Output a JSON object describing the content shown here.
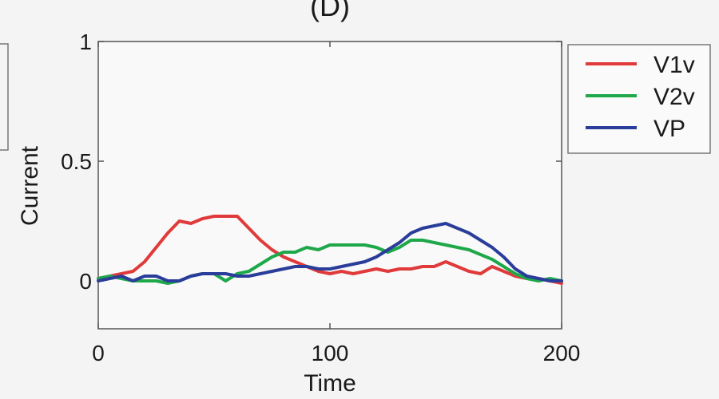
{
  "chart_data": {
    "type": "line",
    "panel_label": "(D)",
    "xlabel": "Time",
    "ylabel": "Current",
    "xlim": [
      0,
      200
    ],
    "ylim": [
      -0.2,
      1.0
    ],
    "x_ticks": [
      0,
      100,
      200
    ],
    "x_tick_labels": [
      "0",
      "100",
      "200"
    ],
    "y_ticks": [
      0,
      0.5,
      1
    ],
    "y_tick_labels": [
      "0",
      "0.5",
      "1"
    ],
    "grid": false,
    "legend_position": "top-right, outside plot",
    "series": [
      {
        "name": "V1v",
        "color": "#e03a3a",
        "x": [
          0,
          5,
          10,
          15,
          20,
          25,
          30,
          35,
          40,
          45,
          50,
          55,
          60,
          65,
          70,
          75,
          80,
          85,
          90,
          95,
          100,
          105,
          110,
          115,
          120,
          125,
          130,
          135,
          140,
          145,
          150,
          155,
          160,
          165,
          170,
          175,
          180,
          185,
          190,
          195,
          200
        ],
        "y": [
          0.01,
          0.02,
          0.03,
          0.04,
          0.08,
          0.14,
          0.2,
          0.25,
          0.24,
          0.26,
          0.27,
          0.27,
          0.27,
          0.22,
          0.17,
          0.13,
          0.1,
          0.08,
          0.06,
          0.04,
          0.03,
          0.04,
          0.03,
          0.04,
          0.05,
          0.04,
          0.05,
          0.05,
          0.06,
          0.06,
          0.08,
          0.06,
          0.04,
          0.03,
          0.06,
          0.04,
          0.02,
          0.01,
          0.01,
          0.0,
          -0.01
        ]
      },
      {
        "name": "V2v",
        "color": "#1fa84a",
        "x": [
          0,
          5,
          10,
          15,
          20,
          25,
          30,
          35,
          40,
          45,
          50,
          55,
          60,
          65,
          70,
          75,
          80,
          85,
          90,
          95,
          100,
          105,
          110,
          115,
          120,
          125,
          130,
          135,
          140,
          145,
          150,
          155,
          160,
          165,
          170,
          175,
          180,
          185,
          190,
          195,
          200
        ],
        "y": [
          0.01,
          0.02,
          0.01,
          0.0,
          0.0,
          0.0,
          -0.01,
          0.0,
          0.02,
          0.03,
          0.03,
          0.0,
          0.03,
          0.04,
          0.07,
          0.1,
          0.12,
          0.12,
          0.14,
          0.13,
          0.15,
          0.15,
          0.15,
          0.15,
          0.14,
          0.12,
          0.14,
          0.17,
          0.17,
          0.16,
          0.15,
          0.14,
          0.13,
          0.11,
          0.09,
          0.06,
          0.03,
          0.01,
          0.0,
          0.01,
          0.0
        ]
      },
      {
        "name": "VP",
        "color": "#2b3d9a",
        "x": [
          0,
          5,
          10,
          15,
          20,
          25,
          30,
          35,
          40,
          45,
          50,
          55,
          60,
          65,
          70,
          75,
          80,
          85,
          90,
          95,
          100,
          105,
          110,
          115,
          120,
          125,
          130,
          135,
          140,
          145,
          150,
          155,
          160,
          165,
          170,
          175,
          180,
          185,
          190,
          195,
          200
        ],
        "y": [
          0.0,
          0.01,
          0.02,
          0.0,
          0.02,
          0.02,
          0.0,
          0.0,
          0.02,
          0.03,
          0.03,
          0.03,
          0.02,
          0.02,
          0.03,
          0.04,
          0.05,
          0.06,
          0.06,
          0.05,
          0.05,
          0.06,
          0.07,
          0.08,
          0.1,
          0.13,
          0.16,
          0.2,
          0.22,
          0.23,
          0.24,
          0.22,
          0.2,
          0.17,
          0.14,
          0.1,
          0.05,
          0.02,
          0.01,
          0.0,
          0.0
        ]
      }
    ]
  },
  "colors": {
    "background": "#f4f4f4",
    "plot_background": "#f9f9f9",
    "axis": "#555555",
    "text": "#1a1a1a"
  }
}
